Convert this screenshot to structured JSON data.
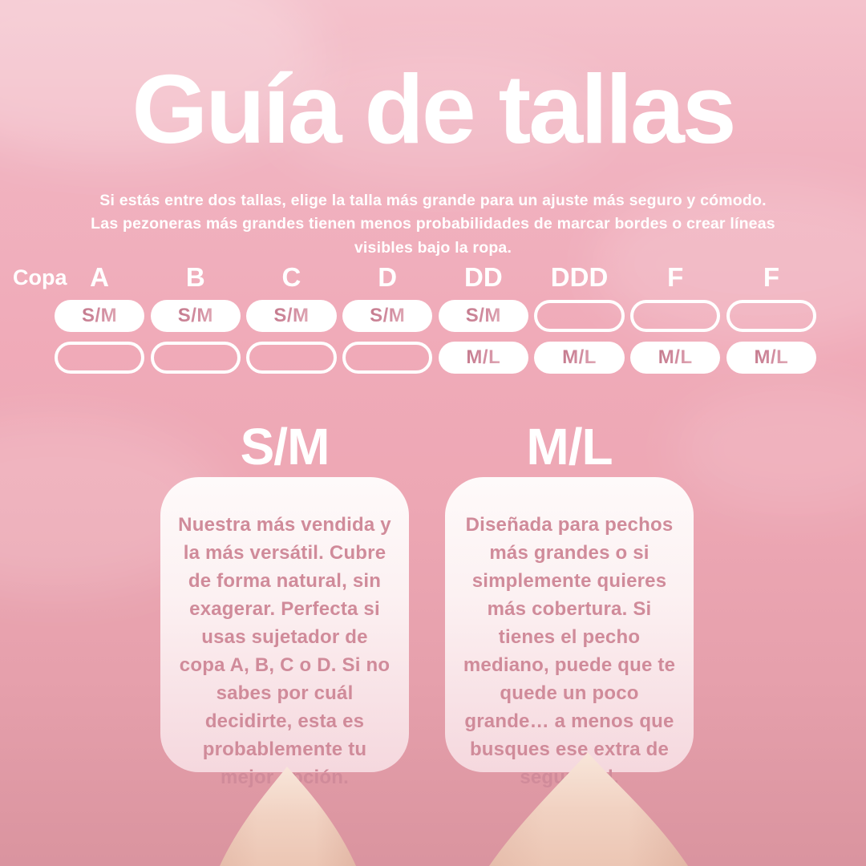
{
  "title": "Guía de tallas",
  "subtitle": {
    "lines": [
      "Si estás entre dos tallas, elige la talla más grande para un ajuste más seguro y cómodo.",
      "Las pezoneras más grandes tienen menos probabilidades de marcar bordes o crear líneas",
      "visibles bajo la ropa."
    ]
  },
  "size_table": {
    "row_label": "Copa",
    "cups": [
      "A",
      "B",
      "C",
      "D",
      "DD",
      "DDD",
      "F",
      "F"
    ],
    "rows": [
      {
        "size": "S/M",
        "cells": [
          true,
          true,
          true,
          true,
          true,
          false,
          false,
          false
        ]
      },
      {
        "size": "M/L",
        "cells": [
          false,
          false,
          false,
          false,
          true,
          true,
          true,
          true
        ]
      }
    ]
  },
  "sections": [
    {
      "heading": "S/M",
      "body": "Nuestra más vendida y la más versátil. Cubre de forma natural, sin exagerar. Perfecta si usas sujetador de copa A, B, C o D. Si no sabes por cuál decidirte, esta es probablemente tu mejor opción."
    },
    {
      "heading": "M/L",
      "body": "Diseñada para pechos más grandes o si simplemente quieres más cobertura. Si tienes el pecho mediano, puede que te quede un poco grande… a menos que busques ese extra de seguridad."
    }
  ],
  "colors": {
    "background_top": "#f4c2cc",
    "background_bottom": "#da949f",
    "pill_fill": "#ffffff",
    "pill_text": "#cc8294",
    "card_text": "#d08b9a",
    "heading_text": "#ffffff",
    "cone_light": "#f7e3d7",
    "cone_dark": "#e9c1af"
  }
}
